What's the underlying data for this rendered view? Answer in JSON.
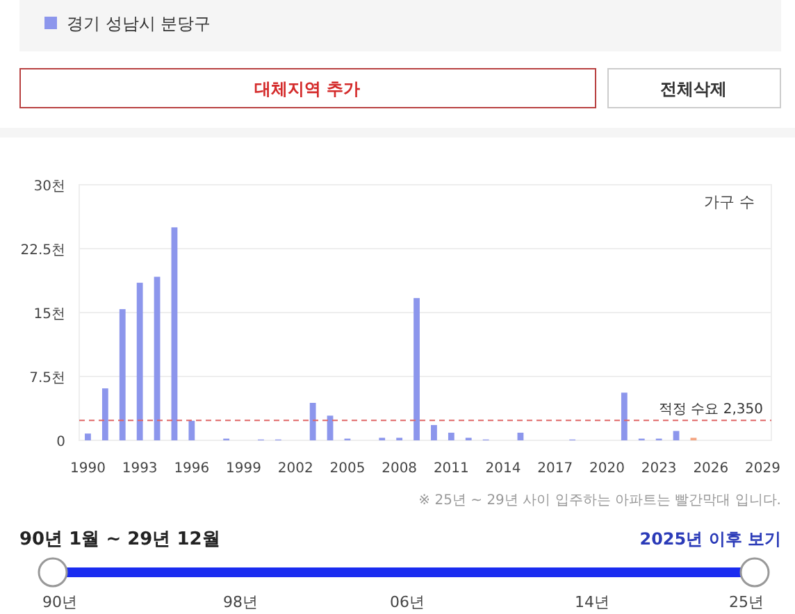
{
  "chart_data": {
    "type": "bar",
    "categories": [
      "1990",
      null,
      null,
      "1993",
      null,
      null,
      "1996",
      null,
      null,
      "1999",
      null,
      null,
      "2002",
      null,
      null,
      "2005",
      null,
      null,
      "2008",
      null,
      null,
      "2011",
      null,
      null,
      "2014",
      null,
      null,
      "2017",
      null,
      null,
      "2020",
      null,
      null,
      "2023",
      null,
      null,
      "2026",
      null,
      null,
      "2029"
    ],
    "series": [
      {
        "name": "경기 성남시 분당구",
        "color": "#8c96ec",
        "values": [
          0.8,
          6.1,
          15.4,
          18.5,
          19.2,
          25.0,
          2.3,
          0,
          0.2,
          0,
          0.1,
          0.1,
          0,
          4.4,
          2.9,
          0.2,
          0,
          0.3,
          0.3,
          16.7,
          1.8,
          0.9,
          0.3,
          0.1,
          0,
          0.9,
          0,
          0,
          0.1,
          0,
          0,
          5.6,
          0.2,
          0.2,
          1.1,
          0.3,
          0,
          0,
          0,
          0
        ],
        "colors": [
          "#8c96ec",
          "#8c96ec",
          "#8c96ec",
          "#8c96ec",
          "#8c96ec",
          "#8c96ec",
          "#8c96ec",
          "#8c96ec",
          "#8c96ec",
          "#8c96ec",
          "#8c96ec",
          "#8c96ec",
          "#8c96ec",
          "#8c96ec",
          "#8c96ec",
          "#8c96ec",
          "#8c96ec",
          "#8c96ec",
          "#8c96ec",
          "#8c96ec",
          "#8c96ec",
          "#8c96ec",
          "#8c96ec",
          "#8c96ec",
          "#8c96ec",
          "#8c96ec",
          "#8c96ec",
          "#8c96ec",
          "#8c96ec",
          "#8c96ec",
          "#8c96ec",
          "#8c96ec",
          "#8c96ec",
          "#8c96ec",
          "#8c96ec",
          "#f4a582",
          "#f4a582",
          "#f4a582",
          "#f4a582",
          "#f4a582"
        ]
      }
    ],
    "ylim": [
      0,
      30
    ],
    "yticks": [
      0,
      {
        "value": 7.5,
        "label": "7.5천"
      },
      {
        "value": 15,
        "label": "15천"
      },
      {
        "value": 22.5,
        "label": "22.5천"
      },
      {
        "value": 30,
        "label": "30천"
      }
    ],
    "ylabel": "가구 수",
    "grid": "y",
    "legend": "top left",
    "ref_lines": [
      {
        "axis": "y",
        "value": 2.35,
        "label": "적정 수요 2,350",
        "color": "#e06666",
        "line_style": "dashed"
      }
    ],
    "annotations": [
      "대체지역 추가",
      "전체삭제",
      "※ 25년 ~ 29년 사이 입주하는 아파트는 빨간막대 입니다.",
      "90년 1월 ~ 29년 12월",
      "2025년 이후 보기",
      "90년",
      "98년",
      "06년",
      "14년",
      "25년"
    ]
  }
}
